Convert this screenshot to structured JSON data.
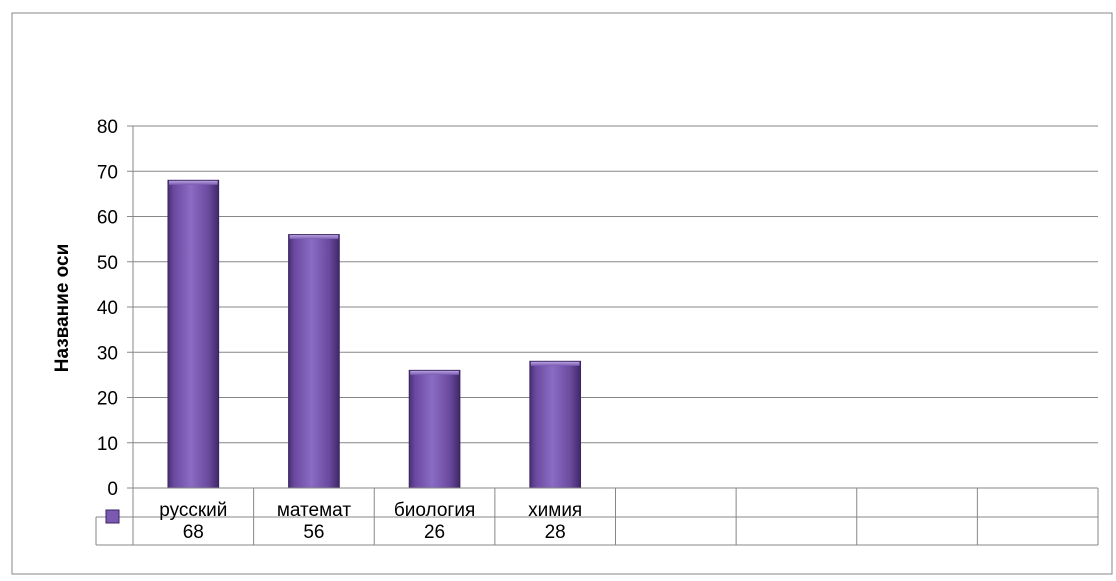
{
  "chart_data": {
    "type": "bar",
    "title": "",
    "xlabel": "",
    "ylabel": "Название оси",
    "ylim": [
      0,
      80
    ],
    "yticks": [
      0,
      10,
      20,
      30,
      40,
      50,
      60,
      70,
      80
    ],
    "grid": true,
    "legend": "data table",
    "categories": [
      "русский",
      "математ",
      "биология",
      "химия",
      "",
      "",
      "",
      ""
    ],
    "series": [
      {
        "name": "",
        "color": "#7A5AB0",
        "values": [
          68,
          56,
          26,
          28,
          null,
          null,
          null,
          null
        ]
      }
    ],
    "data_table": true
  }
}
